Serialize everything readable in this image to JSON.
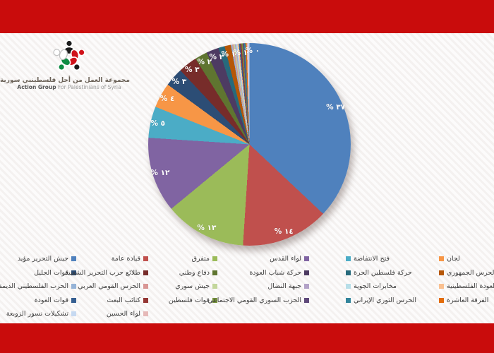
{
  "brand": {
    "arabic_name": "مجموعة العمل من أجل فلسطينيي سورية",
    "english_name_strong": "Action Group",
    "english_name_rest": "For Palestinians of Syria"
  },
  "colors": {
    "frame_red": "#c90c0c",
    "legend_text": "#3d3d3d",
    "pct_label_text": "#ffffff"
  },
  "chart_data": {
    "type": "pie",
    "title": "",
    "legend_position": "bottom",
    "start_angle_deg": 0,
    "direction": "clockwise",
    "series": [
      {
        "label": "جيش التحرير مؤيد",
        "value": 37,
        "pct_label": "% ٣٧",
        "color": "#4F81BD"
      },
      {
        "label": "قيادة عامة",
        "value": 14,
        "pct_label": "% ١٤",
        "color": "#C0504D"
      },
      {
        "label": "متفرق",
        "value": 13,
        "pct_label": "% ١٣",
        "color": "#9BBB59"
      },
      {
        "label": "لواء القدس",
        "value": 12,
        "pct_label": "% ١٢",
        "color": "#8064A2"
      },
      {
        "label": "فتح الانتفاضة",
        "value": 5,
        "pct_label": "% ٥",
        "color": "#4BACC6"
      },
      {
        "label": "لجان",
        "value": 4,
        "pct_label": "% ٤",
        "color": "#F79646"
      },
      {
        "label": "قوات الجليل",
        "value": 3,
        "pct_label": "% ٣",
        "color": "#2C4D75"
      },
      {
        "label": "طلائع حرب التحرير الشعبية",
        "value": 3,
        "pct_label": "% ٣",
        "color": "#772C2A"
      },
      {
        "label": "دفاع وطني",
        "value": 2,
        "pct_label": "% ٢",
        "color": "#5F7530"
      },
      {
        "label": "حركة شباب العودة",
        "value": 2,
        "pct_label": "% ٢",
        "color": "#4D3B62"
      },
      {
        "label": "حركة فلسطين الحرة",
        "value": 1,
        "pct_label": "% ١",
        "color": "#276A7C"
      },
      {
        "label": "الحرس الجمهوري",
        "value": 1,
        "pct_label": "% ١",
        "color": "#B65708"
      },
      {
        "label": "الحزب الفلسطيني الديمقراطي",
        "value": 0.21,
        "pct_label": "",
        "color": "#95B3D7"
      },
      {
        "label": "الحرس القومي العربي",
        "value": 0.21,
        "pct_label": "",
        "color": "#D99694"
      },
      {
        "label": "جيش سوري",
        "value": 0.21,
        "pct_label": "",
        "color": "#C3D69B"
      },
      {
        "label": "جبهة النضال",
        "value": 0.21,
        "pct_label": "",
        "color": "#B3A2C7"
      },
      {
        "label": "مخابرات الجوية",
        "value": 0.21,
        "pct_label": "",
        "color": "#B7DEE8"
      },
      {
        "label": "كتيبة العودة الفلسطينية",
        "value": 0.21,
        "pct_label": "",
        "color": "#FAC090"
      },
      {
        "label": "قوات العودة",
        "value": 0.21,
        "pct_label": "",
        "color": "#365F91"
      },
      {
        "label": "كتائب البعث",
        "value": 0.21,
        "pct_label": "",
        "color": "#943634"
      },
      {
        "label": "قوات فلسطين",
        "value": 0.21,
        "pct_label": "",
        "color": "#76923C"
      },
      {
        "label": "الحزب السوري القومي الاجتماعي",
        "value": 0.21,
        "pct_label": "",
        "color": "#5F497A"
      },
      {
        "label": "الحرس الثوري الإيراني",
        "value": 0.21,
        "pct_label": "% ٠",
        "color": "#31849B"
      },
      {
        "label": "الفرقة العاشرة",
        "value": 0.21,
        "pct_label": "",
        "color": "#E36C0A"
      },
      {
        "label": "لواء الحسين",
        "value": 0.21,
        "pct_label": "",
        "color": "#E6B9B8"
      },
      {
        "label": "تشكيلات نسور الزوبعة",
        "value": 0.22,
        "pct_label": "",
        "color": "#C6D9F1"
      }
    ],
    "legend_columns": [
      {
        "items": [
          0,
          6,
          12,
          18,
          25
        ]
      },
      {
        "items": [
          1,
          7,
          13,
          19,
          24
        ]
      },
      {
        "items": [
          2,
          8,
          14,
          20
        ]
      },
      {
        "items": [
          3,
          9,
          15,
          21
        ]
      },
      {
        "items": [
          4,
          10,
          16,
          22
        ]
      },
      {
        "items": [
          5,
          11,
          17,
          23
        ]
      }
    ]
  }
}
